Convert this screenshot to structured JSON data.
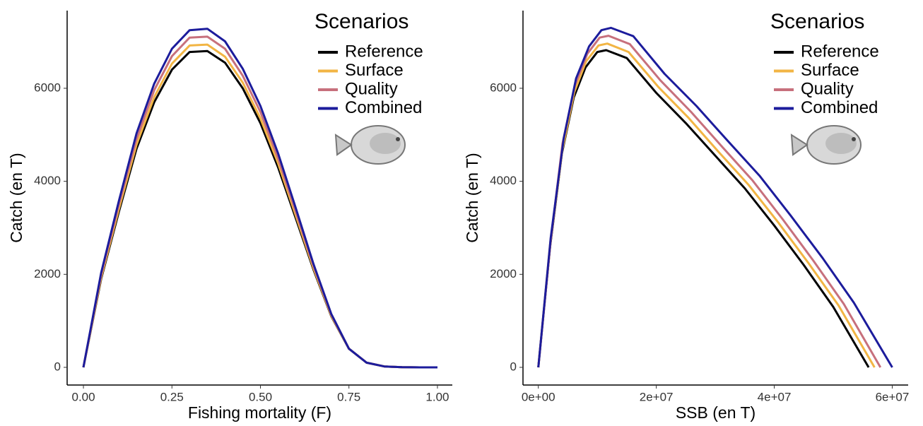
{
  "chart_data": [
    {
      "type": "line",
      "x_label": "Fishing mortality (F)",
      "y_label": "Catch (en T)",
      "legend_title": "Scenarios",
      "x": [
        0,
        0.05,
        0.1,
        0.15,
        0.2,
        0.25,
        0.3,
        0.35,
        0.4,
        0.45,
        0.5,
        0.55,
        0.6,
        0.65,
        0.7,
        0.75,
        0.8,
        0.85,
        0.9,
        0.95,
        1.0
      ],
      "series": [
        {
          "name": "Reference",
          "color": "#000000",
          "values": [
            0,
            1900,
            3340,
            4700,
            5700,
            6400,
            6780,
            6800,
            6550,
            6000,
            5250,
            4300,
            3200,
            2100,
            1100,
            400,
            100,
            20,
            5,
            0,
            0
          ]
        },
        {
          "name": "Surface",
          "color": "#f2b544",
          "values": [
            0,
            1930,
            3400,
            4790,
            5810,
            6530,
            6920,
            6940,
            6680,
            6120,
            5350,
            4390,
            3260,
            2130,
            1110,
            400,
            100,
            20,
            5,
            0,
            0
          ]
        },
        {
          "name": "Quality",
          "color": "#c7707c",
          "values": [
            0,
            1980,
            3490,
            4910,
            5960,
            6690,
            7090,
            7110,
            6850,
            6270,
            5490,
            4490,
            3340,
            2180,
            1130,
            400,
            100,
            20,
            5,
            0,
            0
          ]
        },
        {
          "name": "Combined",
          "color": "#1c1c9c",
          "values": [
            0,
            2030,
            3570,
            5030,
            6100,
            6850,
            7250,
            7280,
            7010,
            6420,
            5620,
            4600,
            3420,
            2220,
            1150,
            400,
            100,
            20,
            5,
            0,
            0
          ]
        }
      ],
      "xlim": [
        -0.046,
        1.042
      ],
      "ylim": [
        -380,
        7670
      ],
      "xticks": [
        {
          "value": 0,
          "label": "0.00"
        },
        0.25,
        {
          "value": 0.5,
          "label": "0.50"
        },
        0.75,
        {
          "value": 1,
          "label": "1.00"
        }
      ],
      "yticks": [
        0,
        2000,
        4000,
        6000
      ]
    },
    {
      "type": "line",
      "x_label": "SSB (en T)",
      "y_label": "Catch (en T)",
      "legend_title": "Scenarios",
      "series": [
        {
          "name": "Reference",
          "color": "#000000",
          "x": [
            0,
            2000000,
            4000000,
            6000000,
            8000000,
            10000000,
            11500000,
            15000000,
            20000000,
            25000000,
            30000000,
            35000000,
            40000000,
            45000000,
            50000000,
            56000000
          ],
          "values": [
            0,
            2600,
            4600,
            5800,
            6450,
            6780,
            6820,
            6650,
            5900,
            5250,
            4550,
            3850,
            3050,
            2200,
            1300,
            0
          ]
        },
        {
          "name": "Surface",
          "color": "#f2b544",
          "x": [
            0,
            2000000,
            4100000,
            6100000,
            8100000,
            10200000,
            11700000,
            15300000,
            20400000,
            25500000,
            30500000,
            35600000,
            40700000,
            45800000,
            50900000,
            57000000
          ],
          "values": [
            0,
            2650,
            4690,
            5920,
            6580,
            6920,
            6960,
            6780,
            6020,
            5360,
            4640,
            3930,
            3110,
            2240,
            1330,
            0
          ]
        },
        {
          "name": "Quality",
          "color": "#c7707c",
          "x": [
            0,
            2100000,
            4100000,
            6200000,
            8300000,
            10400000,
            11900000,
            15500000,
            20700000,
            25900000,
            31100000,
            36300000,
            41400000,
            46600000,
            51800000,
            58000000
          ],
          "values": [
            0,
            2720,
            4810,
            6060,
            6740,
            7090,
            7130,
            6950,
            6170,
            5490,
            4750,
            4020,
            3190,
            2300,
            1360,
            0
          ]
        },
        {
          "name": "Combined",
          "color": "#1c1c9c",
          "x": [
            0,
            2100000,
            4300000,
            6400000,
            8600000,
            10700000,
            12300000,
            16100000,
            21400000,
            26800000,
            32100000,
            37500000,
            42800000,
            48200000,
            53500000,
            60000000
          ],
          "values": [
            0,
            2780,
            4920,
            6210,
            6900,
            7250,
            7300,
            7120,
            6310,
            5620,
            4870,
            4120,
            3260,
            2350,
            1390,
            0
          ]
        }
      ],
      "xlim": [
        -2600000,
        62700000
      ],
      "ylim": [
        -380,
        7670
      ],
      "xticks": [
        {
          "value": 0,
          "label": "0e+00"
        },
        {
          "value": 20000000,
          "label": "2e+07"
        },
        {
          "value": 40000000,
          "label": "4e+07"
        },
        {
          "value": 60000000,
          "label": "6e+07"
        }
      ],
      "yticks": [
        0,
        2000,
        4000,
        6000
      ]
    }
  ]
}
